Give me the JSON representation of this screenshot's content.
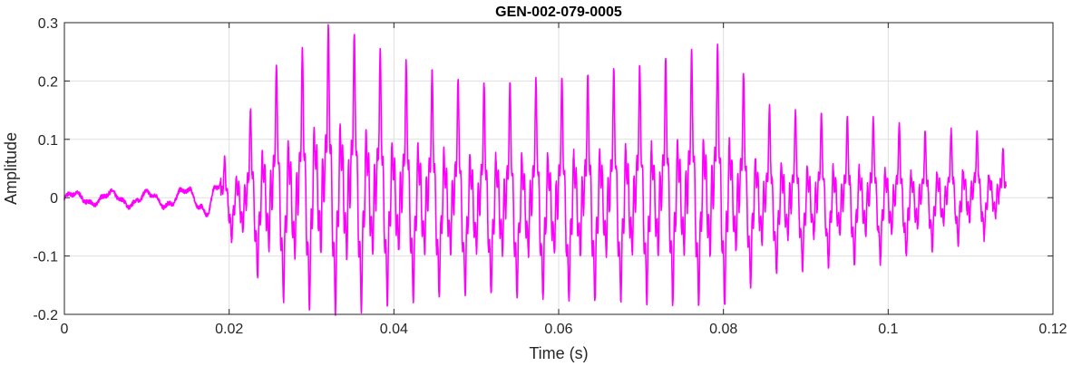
{
  "chart_data": {
    "type": "line",
    "title": "GEN-002-079-0005",
    "xlabel": "Time (s)",
    "ylabel": "Amplitude",
    "xlim": [
      0,
      0.12
    ],
    "ylim": [
      -0.2,
      0.3
    ],
    "xticks": [
      0,
      0.02,
      0.04,
      0.06,
      0.08,
      0.1,
      0.12
    ],
    "xtick_labels": [
      "0",
      "0.02",
      "0.04",
      "0.06",
      "0.08",
      "0.1",
      "0.12"
    ],
    "yticks": [
      -0.2,
      -0.1,
      0,
      0.1,
      0.2,
      0.3
    ],
    "ytick_labels": [
      "-0.2",
      "-0.1",
      "0",
      "0.1",
      "0.2",
      "0.3"
    ],
    "grid": true,
    "series": [
      {
        "color": "#ff00ff",
        "x_start": 0.0,
        "x_end": 0.1143,
        "envelope_time": [
          0.0,
          0.005,
          0.01,
          0.015,
          0.018,
          0.02,
          0.022,
          0.025,
          0.028,
          0.031,
          0.034,
          0.04,
          0.05,
          0.06,
          0.07,
          0.08,
          0.085,
          0.09,
          0.1,
          0.105,
          0.11,
          0.1143
        ],
        "envelope_upper": [
          0.01,
          0.012,
          0.012,
          0.02,
          0.04,
          0.06,
          0.11,
          0.19,
          0.2,
          0.25,
          0.245,
          0.2,
          0.16,
          0.17,
          0.19,
          0.22,
          0.13,
          0.12,
          0.11,
          0.09,
          0.1,
          0.065
        ],
        "envelope_lower": [
          -0.012,
          -0.015,
          -0.018,
          -0.02,
          -0.04,
          -0.06,
          -0.1,
          -0.15,
          -0.17,
          -0.17,
          -0.18,
          -0.16,
          -0.15,
          -0.16,
          -0.16,
          -0.17,
          -0.12,
          -0.11,
          -0.1,
          -0.08,
          -0.07,
          -0.05
        ],
        "period_s": 0.00315,
        "onset_s": 0.019
      }
    ]
  }
}
